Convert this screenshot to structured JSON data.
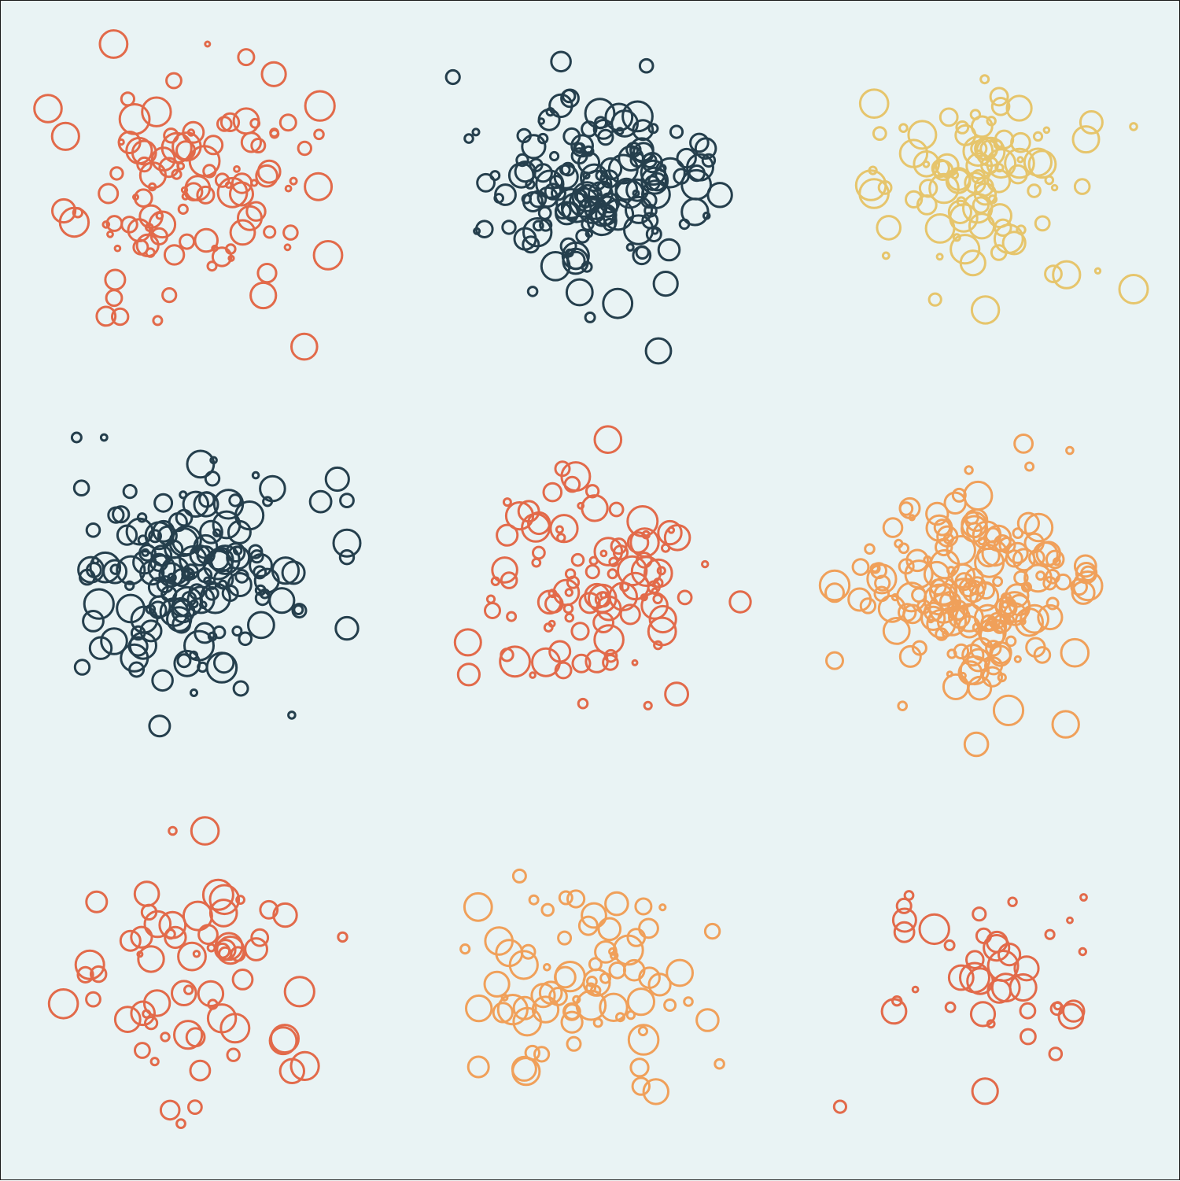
{
  "background_color": "#e9f3f4",
  "border_color": "#1a1a1a",
  "grid": {
    "rows": 3,
    "cols": 3
  },
  "clusters": [
    {
      "color": "#e26a4a",
      "seed": 11,
      "count": 105,
      "spread": 0.95
    },
    {
      "color": "#253f4d",
      "seed": 23,
      "count": 150,
      "spread": 0.85
    },
    {
      "color": "#e6c56c",
      "seed": 37,
      "count": 90,
      "spread": 0.9
    },
    {
      "color": "#253f4d",
      "seed": 41,
      "count": 150,
      "spread": 0.95
    },
    {
      "color": "#e26a4a",
      "seed": 53,
      "count": 100,
      "spread": 0.9
    },
    {
      "color": "#f0a05a",
      "seed": 67,
      "count": 170,
      "spread": 0.9
    },
    {
      "color": "#e26a4a",
      "seed": 71,
      "count": 65,
      "spread": 1.0
    },
    {
      "color": "#f0a05a",
      "seed": 83,
      "count": 75,
      "spread": 0.95
    },
    {
      "color": "#e26a4a",
      "seed": 97,
      "count": 40,
      "spread": 1.0
    }
  ]
}
